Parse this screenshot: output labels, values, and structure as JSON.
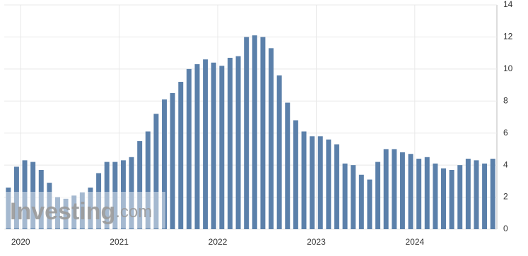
{
  "chart_data": {
    "type": "bar",
    "watermark": {
      "brand": "Investing",
      "suffix": ".com"
    },
    "categories": [
      null,
      "2020",
      null,
      null,
      null,
      null,
      null,
      null,
      null,
      null,
      null,
      null,
      null,
      "2021",
      null,
      null,
      null,
      null,
      null,
      null,
      null,
      null,
      null,
      null,
      null,
      "2022",
      null,
      null,
      null,
      null,
      null,
      null,
      null,
      null,
      null,
      null,
      null,
      "2023",
      null,
      null,
      null,
      null,
      null,
      null,
      null,
      null,
      null,
      null,
      null,
      "2024",
      null,
      null,
      null,
      null,
      null,
      null,
      null,
      null,
      null,
      null
    ],
    "values": [
      2.6,
      3.9,
      4.3,
      4.2,
      3.7,
      2.9,
      2.0,
      1.9,
      2.1,
      2.3,
      2.6,
      3.5,
      4.2,
      4.2,
      4.3,
      4.5,
      5.5,
      6.1,
      7.2,
      8.1,
      8.5,
      9.2,
      10.0,
      10.3,
      10.6,
      10.4,
      10.2,
      10.7,
      10.8,
      12.0,
      12.1,
      12.0,
      11.3,
      9.6,
      7.9,
      6.8,
      6.1,
      5.8,
      5.8,
      5.6,
      5.3,
      4.1,
      4.0,
      3.4,
      3.1,
      4.2,
      5.0,
      5.0,
      4.8,
      4.7,
      4.4,
      4.5,
      4.1,
      3.8,
      3.7,
      4.0,
      4.4,
      4.3,
      4.1,
      4.4
    ],
    "color": "#5b80aa",
    "ylim": [
      0,
      14
    ],
    "yticks": [
      0,
      2,
      4,
      6,
      8,
      10,
      12,
      14
    ],
    "grid": true
  }
}
